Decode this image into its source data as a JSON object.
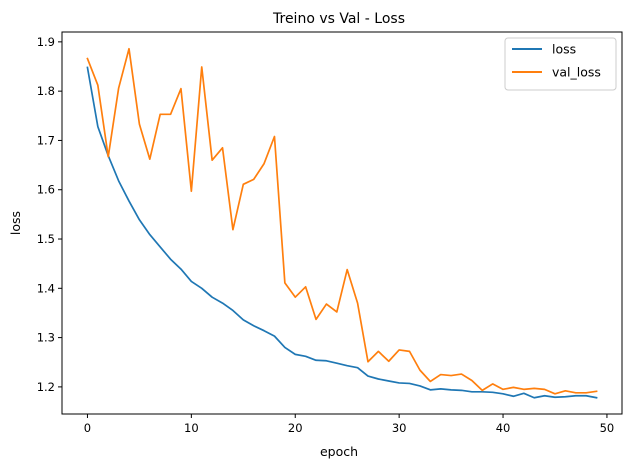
{
  "chart_data": {
    "type": "line",
    "title": "Treino vs Val - Loss",
    "xlabel": "epoch",
    "ylabel": "loss",
    "xlim": [
      -2.45,
      51.45
    ],
    "ylim": [
      1.145,
      1.92
    ],
    "xticks": [
      0,
      10,
      20,
      30,
      40,
      50
    ],
    "yticks": [
      1.2,
      1.3,
      1.4,
      1.5,
      1.6,
      1.7,
      1.8,
      1.9
    ],
    "grid": false,
    "legend_position": "top-right",
    "x": [
      0,
      1,
      2,
      3,
      4,
      5,
      6,
      7,
      8,
      9,
      10,
      11,
      12,
      13,
      14,
      15,
      16,
      17,
      18,
      19,
      20,
      21,
      22,
      23,
      24,
      25,
      26,
      27,
      28,
      29,
      30,
      31,
      32,
      33,
      34,
      35,
      36,
      37,
      38,
      39,
      40,
      41,
      42,
      43,
      44,
      45,
      46,
      47,
      48,
      49
    ],
    "series": [
      {
        "name": "loss",
        "color": "#1f77b4",
        "values": [
          1.848,
          1.728,
          1.669,
          1.618,
          1.577,
          1.539,
          1.509,
          1.484,
          1.459,
          1.439,
          1.414,
          1.4,
          1.382,
          1.37,
          1.355,
          1.336,
          1.324,
          1.314,
          1.303,
          1.28,
          1.266,
          1.262,
          1.254,
          1.253,
          1.248,
          1.243,
          1.239,
          1.222,
          1.216,
          1.212,
          1.208,
          1.207,
          1.202,
          1.194,
          1.196,
          1.194,
          1.193,
          1.19,
          1.19,
          1.189,
          1.186,
          1.181,
          1.187,
          1.178,
          1.182,
          1.179,
          1.18,
          1.182,
          1.182,
          1.178
        ]
      },
      {
        "name": "val_loss",
        "color": "#ff7f0e",
        "values": [
          1.866,
          1.812,
          1.667,
          1.806,
          1.886,
          1.733,
          1.662,
          1.753,
          1.753,
          1.805,
          1.597,
          1.849,
          1.66,
          1.685,
          1.519,
          1.611,
          1.621,
          1.653,
          1.708,
          1.411,
          1.382,
          1.403,
          1.337,
          1.368,
          1.352,
          1.438,
          1.37,
          1.251,
          1.272,
          1.252,
          1.275,
          1.272,
          1.234,
          1.211,
          1.225,
          1.223,
          1.226,
          1.213,
          1.193,
          1.206,
          1.195,
          1.199,
          1.195,
          1.197,
          1.195,
          1.186,
          1.192,
          1.188,
          1.188,
          1.191
        ]
      }
    ]
  }
}
